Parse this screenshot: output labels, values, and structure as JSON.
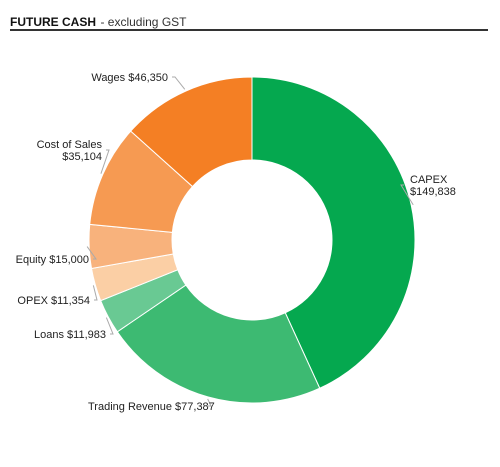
{
  "header": {
    "title": "FUTURE CASH",
    "subtitle": "- excluding GST"
  },
  "chart_data": {
    "type": "pie",
    "donut": true,
    "slices": [
      {
        "key": "capex",
        "label": "CAPEX",
        "value_label": "$149,838",
        "value": 149838,
        "color": "#05a84f"
      },
      {
        "key": "trading-revenue",
        "label": "Trading Revenue",
        "value_label": "$77,387",
        "value": 77387,
        "color": "#3dba72"
      },
      {
        "key": "loans",
        "label": "Loans",
        "value_label": "$11,983",
        "value": 11983,
        "color": "#69c993"
      },
      {
        "key": "opex",
        "label": "OPEX",
        "value_label": "$11,354",
        "value": 11354,
        "color": "#fbcfa5"
      },
      {
        "key": "equity",
        "label": "Equity",
        "value_label": "$15,000",
        "value": 15000,
        "color": "#f8b27c"
      },
      {
        "key": "cost-of-sales",
        "label": "Cost of Sales",
        "value_label": "$35,104",
        "value": 35104,
        "color": "#f69a52"
      },
      {
        "key": "wages",
        "label": "Wages",
        "value_label": "$46,350",
        "value": 46350,
        "color": "#f47f24"
      }
    ]
  }
}
